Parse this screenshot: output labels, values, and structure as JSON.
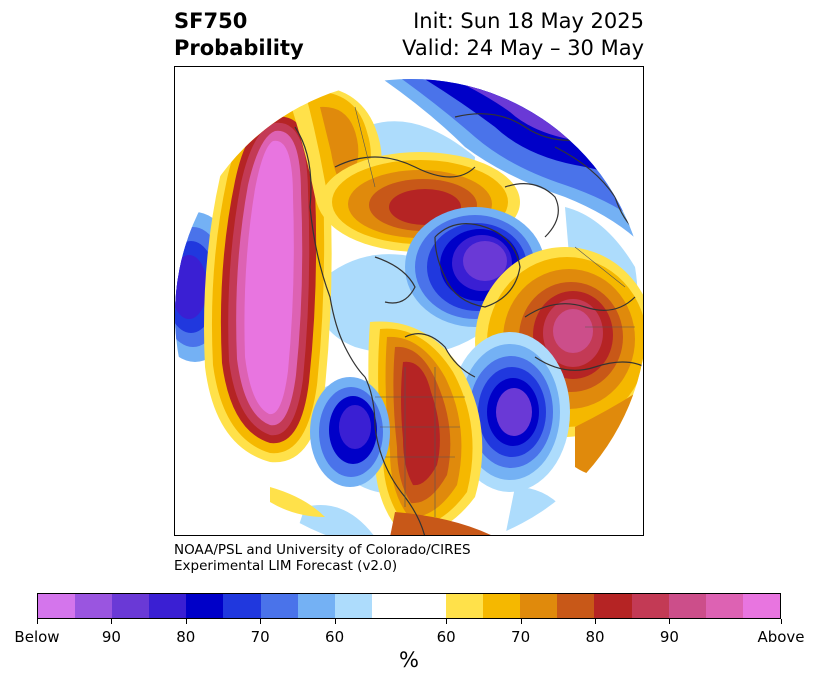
{
  "header": {
    "variable": "SF750",
    "product": "Probability",
    "init": "Init: Sun 18 May 2025",
    "valid": "Valid: 24 May – 30 May"
  },
  "credit": {
    "line1": "NOAA/PSL and University of Colorado/CIRES",
    "line2": "Experimental LIM Forecast (v2.0)"
  },
  "colorbar": {
    "unit": "%",
    "segments": [
      "#d475ec",
      "#9a55e0",
      "#6a39d6",
      "#3a1fd3",
      "#0000c8",
      "#2038de",
      "#4a73ea",
      "#74b1f4",
      "#addcfc",
      "#ffffff",
      "#ffffff",
      "#ffe14a",
      "#f5b800",
      "#e08a0c",
      "#c85818",
      "#b52424",
      "#c33a55",
      "#cc4e8a",
      "#dd62b3",
      "#e875e0"
    ],
    "labels": [
      "Below",
      "90",
      "80",
      "70",
      "60",
      "60",
      "70",
      "80",
      "90",
      "Above"
    ]
  },
  "map": {
    "projection": "north-polar-stereographic",
    "palette": {
      "magenta": "#e875e0",
      "pink": "#dd62b3",
      "rose": "#cc4e8a",
      "crimson": "#c33a55",
      "red": "#b52424",
      "rust": "#c85818",
      "orange": "#e08a0c",
      "gold": "#f5b800",
      "yellow": "#ffe14a",
      "lightblue": "#addcfc",
      "skyblue": "#74b1f4",
      "midblue": "#4a73ea",
      "blue": "#2038de",
      "navy": "#0000c8",
      "indigo": "#3a1fd3",
      "violet": "#6a39d6",
      "purple": "#9a55e0",
      "lilac": "#d475ec",
      "coast": "#333333"
    }
  }
}
